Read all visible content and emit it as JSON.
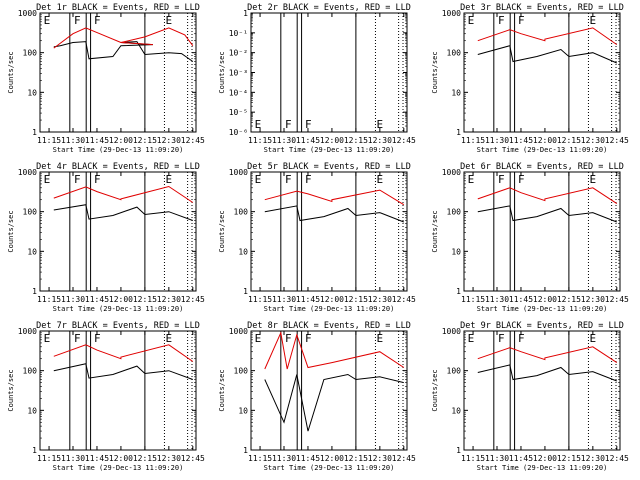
{
  "figure": {
    "x_tick_labels": [
      "11:15",
      "11:30",
      "11:45",
      "12:00",
      "12:15",
      "12:30",
      "12:45"
    ],
    "x_label": "Start Time (29-Dec-13 11:09:20)",
    "y_label": "Counts/sec",
    "y_tick_labels_log": [
      "1",
      "10",
      "100",
      "1000"
    ],
    "y_tick_labels_small": [
      "1",
      "10⁻¹",
      "10⁻²",
      "10⁻³",
      "10⁻⁴",
      "10⁻⁵",
      "10⁻⁶"
    ],
    "series_colors": {
      "events": "#000000",
      "lld": "#e00000"
    },
    "marker_labels": {
      "E": "E",
      "F": "F"
    }
  },
  "chart_data": [
    {
      "type": "line",
      "title": "Det 1r BLACK = Events, RED = LLD",
      "xlabel": "Start Time (29-Dec-13 11:09:20)",
      "ylabel": "Counts/sec",
      "x_range": [
        "11:09:20",
        "12:47"
      ],
      "ylim": [
        1,
        1000
      ],
      "y_scale": "log",
      "grid": false,
      "series": [
        {
          "name": "Events",
          "color": "#000000",
          "values": [
            [
              11.18,
              140
            ],
            [
              11.22,
              150
            ],
            [
              11.3,
              180
            ],
            [
              11.38,
              190
            ],
            [
              11.4,
              70
            ],
            [
              11.55,
              80
            ],
            [
              11.6,
              150
            ],
            [
              11.8,
              160
            ],
            [
              12.0,
              180
            ],
            [
              12.1,
              190
            ],
            [
              12.15,
              90
            ],
            [
              12.3,
              100
            ],
            [
              12.38,
              95
            ],
            [
              12.45,
              60
            ]
          ]
        },
        {
          "name": "LLD",
          "color": "#e00000",
          "values": [
            [
              11.18,
              130
            ],
            [
              11.3,
              300
            ],
            [
              11.38,
              420
            ],
            [
              11.45,
              320
            ],
            [
              11.6,
              180
            ],
            [
              11.8,
              160
            ],
            [
              12.0,
              180
            ],
            [
              12.15,
              250
            ],
            [
              12.3,
              420
            ],
            [
              12.4,
              280
            ],
            [
              12.45,
              150
            ]
          ]
        }
      ]
    },
    {
      "type": "line",
      "title": "Det 2r BLACK = Events, RED = LLD",
      "xlabel": "Start Time (29-Dec-13 11:09:20)",
      "ylabel": "Counts/sec",
      "x_range": [
        "11:09:20",
        "12:47"
      ],
      "ylim": [
        1e-06,
        1
      ],
      "y_scale": "log",
      "grid": false,
      "series": []
    },
    {
      "type": "line",
      "title": "Det 3r BLACK = Events, RED = LLD",
      "xlabel": "Start Time (29-Dec-13 11:09:20)",
      "ylabel": "Counts/sec",
      "x_range": [
        "11:09:20",
        "12:47"
      ],
      "ylim": [
        1,
        1000
      ],
      "y_scale": "log",
      "grid": false,
      "series": [
        {
          "name": "Events",
          "color": "#000000",
          "values": [
            [
              11.18,
              90
            ],
            [
              11.38,
              150
            ],
            [
              11.4,
              60
            ],
            [
              11.55,
              80
            ],
            [
              12.1,
              120
            ],
            [
              12.15,
              80
            ],
            [
              12.3,
              100
            ],
            [
              12.45,
              55
            ]
          ]
        },
        {
          "name": "LLD",
          "color": "#e00000",
          "values": [
            [
              11.18,
              200
            ],
            [
              11.38,
              380
            ],
            [
              11.45,
              300
            ],
            [
              11.6,
              200
            ],
            [
              12.0,
              220
            ],
            [
              12.3,
              420
            ],
            [
              12.45,
              160
            ]
          ]
        }
      ]
    },
    {
      "type": "line",
      "title": "Det 4r BLACK = Events, RED = LLD",
      "xlabel": "Start Time (29-Dec-13 11:09:20)",
      "ylabel": "Counts/sec",
      "x_range": [
        "11:09:20",
        "12:47"
      ],
      "ylim": [
        1,
        1000
      ],
      "y_scale": "log",
      "grid": false,
      "series": [
        {
          "name": "Events",
          "color": "#000000",
          "values": [
            [
              11.18,
              110
            ],
            [
              11.38,
              150
            ],
            [
              11.4,
              65
            ],
            [
              11.55,
              80
            ],
            [
              12.1,
              130
            ],
            [
              12.15,
              85
            ],
            [
              12.3,
              100
            ],
            [
              12.45,
              60
            ]
          ]
        },
        {
          "name": "LLD",
          "color": "#e00000",
          "values": [
            [
              11.18,
              220
            ],
            [
              11.38,
              420
            ],
            [
              11.45,
              320
            ],
            [
              11.6,
              200
            ],
            [
              12.0,
              210
            ],
            [
              12.3,
              430
            ],
            [
              12.45,
              170
            ]
          ]
        }
      ]
    },
    {
      "type": "line",
      "title": "Det 5r BLACK = Events, RED = LLD",
      "xlabel": "Start Time (29-Dec-13 11:09:20)",
      "ylabel": "Counts/sec",
      "x_range": [
        "11:09:20",
        "12:47"
      ],
      "ylim": [
        1,
        1000
      ],
      "y_scale": "log",
      "grid": false,
      "series": [
        {
          "name": "Events",
          "color": "#000000",
          "values": [
            [
              11.18,
              100
            ],
            [
              11.38,
              140
            ],
            [
              11.4,
              60
            ],
            [
              11.55,
              75
            ],
            [
              12.1,
              120
            ],
            [
              12.15,
              80
            ],
            [
              12.3,
              95
            ],
            [
              12.45,
              55
            ]
          ]
        },
        {
          "name": "LLD",
          "color": "#e00000",
          "values": [
            [
              11.18,
              200
            ],
            [
              11.38,
              330
            ],
            [
              11.45,
              280
            ],
            [
              11.6,
              180
            ],
            [
              12.0,
              200
            ],
            [
              12.3,
              350
            ],
            [
              12.45,
              150
            ]
          ]
        }
      ]
    },
    {
      "type": "line",
      "title": "Det 6r BLACK = Events, RED = LLD",
      "xlabel": "Start Time (29-Dec-13 11:09:20)",
      "ylabel": "Counts/sec",
      "x_range": [
        "11:09:20",
        "12:47"
      ],
      "ylim": [
        1,
        1000
      ],
      "y_scale": "log",
      "grid": false,
      "series": [
        {
          "name": "Events",
          "color": "#000000",
          "values": [
            [
              11.18,
              100
            ],
            [
              11.38,
              140
            ],
            [
              11.4,
              60
            ],
            [
              11.55,
              75
            ],
            [
              12.1,
              120
            ],
            [
              12.15,
              80
            ],
            [
              12.3,
              95
            ],
            [
              12.45,
              55
            ]
          ]
        },
        {
          "name": "LLD",
          "color": "#e00000",
          "values": [
            [
              11.18,
              210
            ],
            [
              11.38,
              400
            ],
            [
              11.45,
              300
            ],
            [
              11.6,
              190
            ],
            [
              12.0,
              210
            ],
            [
              12.3,
              400
            ],
            [
              12.45,
              160
            ]
          ]
        }
      ]
    },
    {
      "type": "line",
      "title": "Det 7r BLACK = Events, RED = LLD",
      "xlabel": "Start Time (29-Dec-13 11:09:20)",
      "ylabel": "Counts/sec",
      "x_range": [
        "11:09:20",
        "12:47"
      ],
      "ylim": [
        1,
        1000
      ],
      "y_scale": "log",
      "grid": false,
      "series": [
        {
          "name": "Events",
          "color": "#000000",
          "values": [
            [
              11.18,
              100
            ],
            [
              11.38,
              150
            ],
            [
              11.4,
              65
            ],
            [
              11.55,
              80
            ],
            [
              12.1,
              130
            ],
            [
              12.15,
              85
            ],
            [
              12.3,
              100
            ],
            [
              12.45,
              60
            ]
          ]
        },
        {
          "name": "LLD",
          "color": "#e00000",
          "values": [
            [
              11.18,
              230
            ],
            [
              11.38,
              450
            ],
            [
              11.45,
              330
            ],
            [
              11.6,
              200
            ],
            [
              12.0,
              220
            ],
            [
              12.3,
              450
            ],
            [
              12.45,
              170
            ]
          ]
        }
      ]
    },
    {
      "type": "line",
      "title": "Det 8r BLACK = Events, RED = LLD",
      "xlabel": "Start Time (29-Dec-13 11:09:20)",
      "ylabel": "Counts/sec",
      "x_range": [
        "11:09:20",
        "12:47"
      ],
      "ylim": [
        1,
        1000
      ],
      "y_scale": "log",
      "grid": false,
      "series": [
        {
          "name": "Events",
          "color": "#000000",
          "values": [
            [
              11.18,
              60
            ],
            [
              11.3,
              5
            ],
            [
              11.38,
              80
            ],
            [
              11.45,
              3
            ],
            [
              11.55,
              60
            ],
            [
              12.1,
              80
            ],
            [
              12.15,
              60
            ],
            [
              12.3,
              70
            ],
            [
              12.45,
              50
            ]
          ]
        },
        {
          "name": "LLD",
          "color": "#e00000",
          "values": [
            [
              11.18,
              110
            ],
            [
              11.28,
              900
            ],
            [
              11.32,
              110
            ],
            [
              11.38,
              800
            ],
            [
              11.45,
              120
            ],
            [
              12.0,
              160
            ],
            [
              12.3,
              300
            ],
            [
              12.45,
              120
            ]
          ]
        }
      ]
    },
    {
      "type": "line",
      "title": "Det 9r BLACK = Events, RED = LLD",
      "xlabel": "Start Time (29-Dec-13 11:09:20)",
      "ylabel": "Counts/sec",
      "x_range": [
        "11:09:20",
        "12:47"
      ],
      "ylim": [
        1,
        1000
      ],
      "y_scale": "log",
      "grid": false,
      "series": [
        {
          "name": "Events",
          "color": "#000000",
          "values": [
            [
              11.18,
              90
            ],
            [
              11.38,
              140
            ],
            [
              11.4,
              60
            ],
            [
              11.55,
              75
            ],
            [
              12.1,
              120
            ],
            [
              12.15,
              80
            ],
            [
              12.3,
              95
            ],
            [
              12.45,
              55
            ]
          ]
        },
        {
          "name": "LLD",
          "color": "#e00000",
          "values": [
            [
              11.18,
              200
            ],
            [
              11.38,
              380
            ],
            [
              11.45,
              300
            ],
            [
              11.6,
              190
            ],
            [
              12.0,
              210
            ],
            [
              12.3,
              400
            ],
            [
              12.45,
              160
            ]
          ]
        }
      ]
    }
  ]
}
